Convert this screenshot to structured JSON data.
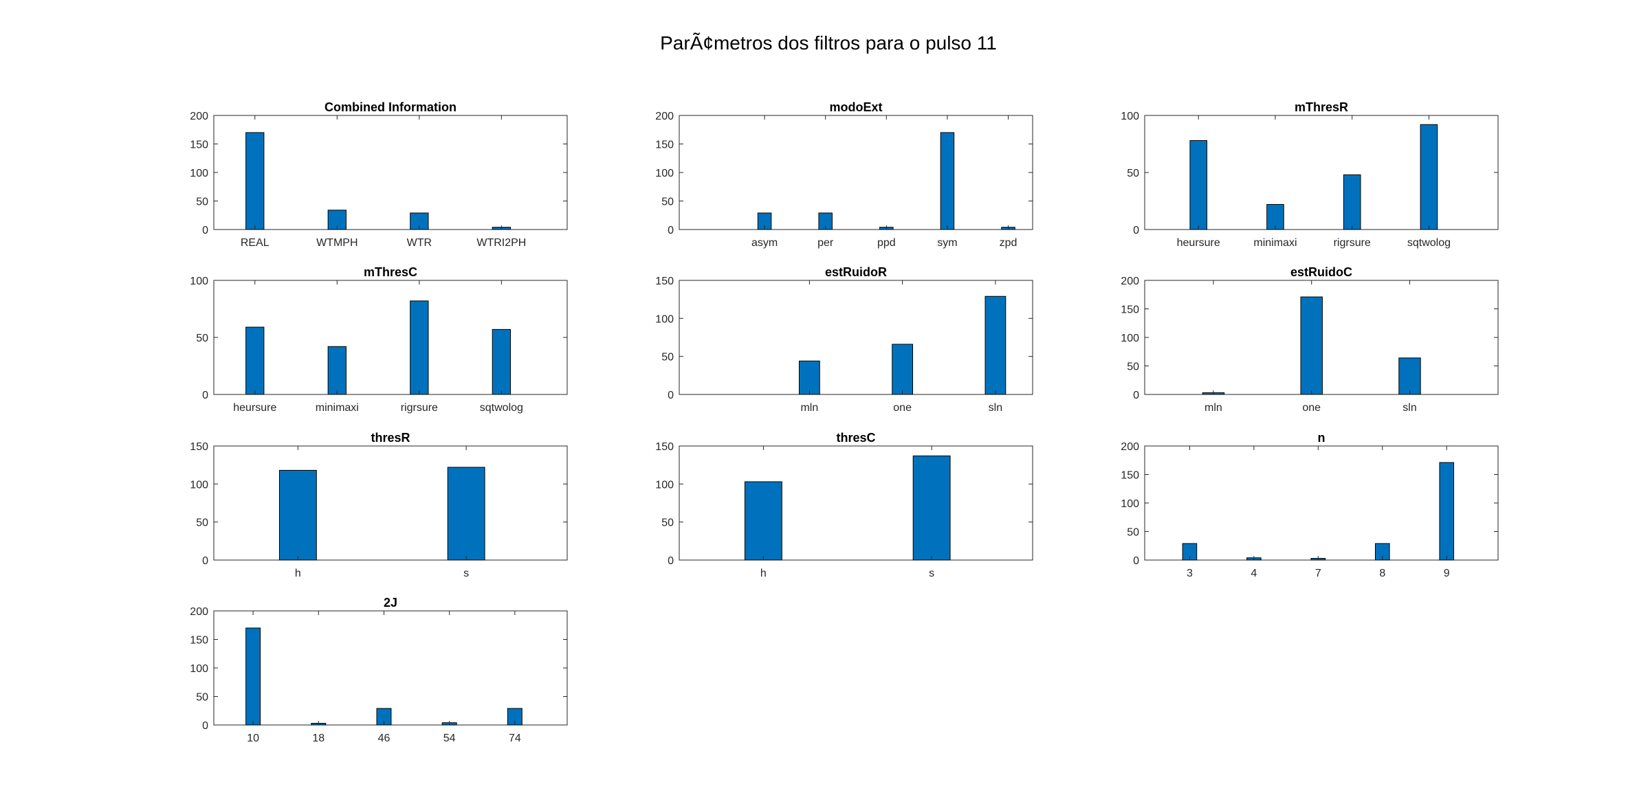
{
  "figure": {
    "title": "ParÃ¢metros dos filtros para o pulso 11"
  },
  "style": {
    "bar_color": "#0072bd",
    "bar_edge": "#000000",
    "axis_color": "#262626"
  },
  "chart_data": [
    {
      "type": "bar",
      "title": "Combined Information",
      "categories": [
        "REAL",
        "WTMPH",
        "WTR",
        "WTRI2PH"
      ],
      "values": [
        170,
        34,
        29,
        4
      ],
      "ylim": [
        0,
        200
      ],
      "yticks": [
        0,
        50,
        100,
        150,
        200
      ],
      "xlim": [
        0.5,
        4.8
      ],
      "grid": false
    },
    {
      "type": "bar",
      "title": "modoExt",
      "categories": [
        "asym",
        "per",
        "ppd",
        "sym",
        "zpd"
      ],
      "values": [
        29,
        29,
        4,
        170,
        4
      ],
      "ylim": [
        0,
        200
      ],
      "yticks": [
        0,
        50,
        100,
        150,
        200
      ],
      "xlim": [
        -0.4,
        5.4
      ],
      "grid": false
    },
    {
      "type": "bar",
      "title": "mThresR",
      "categories": [
        "heursure",
        "minimaxi",
        "rigrsure",
        "sqtwolog"
      ],
      "values": [
        78,
        22,
        48,
        92
      ],
      "ylim": [
        0,
        100
      ],
      "yticks": [
        0,
        50,
        100
      ],
      "xlim": [
        0.3,
        4.9
      ],
      "grid": false
    },
    {
      "type": "bar",
      "title": "mThresC",
      "categories": [
        "heursure",
        "minimaxi",
        "rigrsure",
        "sqtwolog"
      ],
      "values": [
        59,
        42,
        82,
        57
      ],
      "ylim": [
        0,
        100
      ],
      "yticks": [
        0,
        50,
        100
      ],
      "xlim": [
        0.5,
        4.8
      ],
      "grid": false
    },
    {
      "type": "bar",
      "title": "estRuidoR",
      "categories": [
        "mln",
        "one",
        "sln"
      ],
      "values": [
        44,
        66,
        129
      ],
      "ylim": [
        0,
        150
      ],
      "yticks": [
        0,
        50,
        100,
        150
      ],
      "xlim": [
        -0.4,
        3.4
      ],
      "grid": false
    },
    {
      "type": "bar",
      "title": "estRuidoC",
      "categories": [
        "mln",
        "one",
        "sln"
      ],
      "values": [
        3,
        171,
        64
      ],
      "ylim": [
        0,
        200
      ],
      "yticks": [
        0,
        50,
        100,
        150,
        200
      ],
      "xlim": [
        0.3,
        3.9
      ],
      "grid": false
    },
    {
      "type": "bar",
      "title": "thresR",
      "categories": [
        "h",
        "s"
      ],
      "values": [
        118,
        122
      ],
      "ylim": [
        0,
        150
      ],
      "yticks": [
        0,
        50,
        100,
        150
      ],
      "xlim": [
        0.5,
        2.6
      ],
      "grid": false
    },
    {
      "type": "bar",
      "title": "thresC",
      "categories": [
        "h",
        "s"
      ],
      "values": [
        103,
        137
      ],
      "ylim": [
        0,
        150
      ],
      "yticks": [
        0,
        50,
        100,
        150
      ],
      "xlim": [
        0.5,
        2.6
      ],
      "grid": false
    },
    {
      "type": "bar",
      "title": "n",
      "categories": [
        "3",
        "4",
        "7",
        "8",
        "9"
      ],
      "values": [
        29,
        4,
        3,
        29,
        171
      ],
      "ylim": [
        0,
        200
      ],
      "yticks": [
        0,
        50,
        100,
        150,
        200
      ],
      "xlim": [
        0.3,
        5.8
      ],
      "grid": false
    },
    {
      "type": "bar",
      "title": "2J",
      "categories": [
        "10",
        "18",
        "46",
        "54",
        "74"
      ],
      "values": [
        170,
        3,
        29,
        4,
        29
      ],
      "ylim": [
        0,
        200
      ],
      "yticks": [
        0,
        50,
        100,
        150,
        200
      ],
      "xlim": [
        0.4,
        5.8
      ],
      "grid": false
    }
  ]
}
